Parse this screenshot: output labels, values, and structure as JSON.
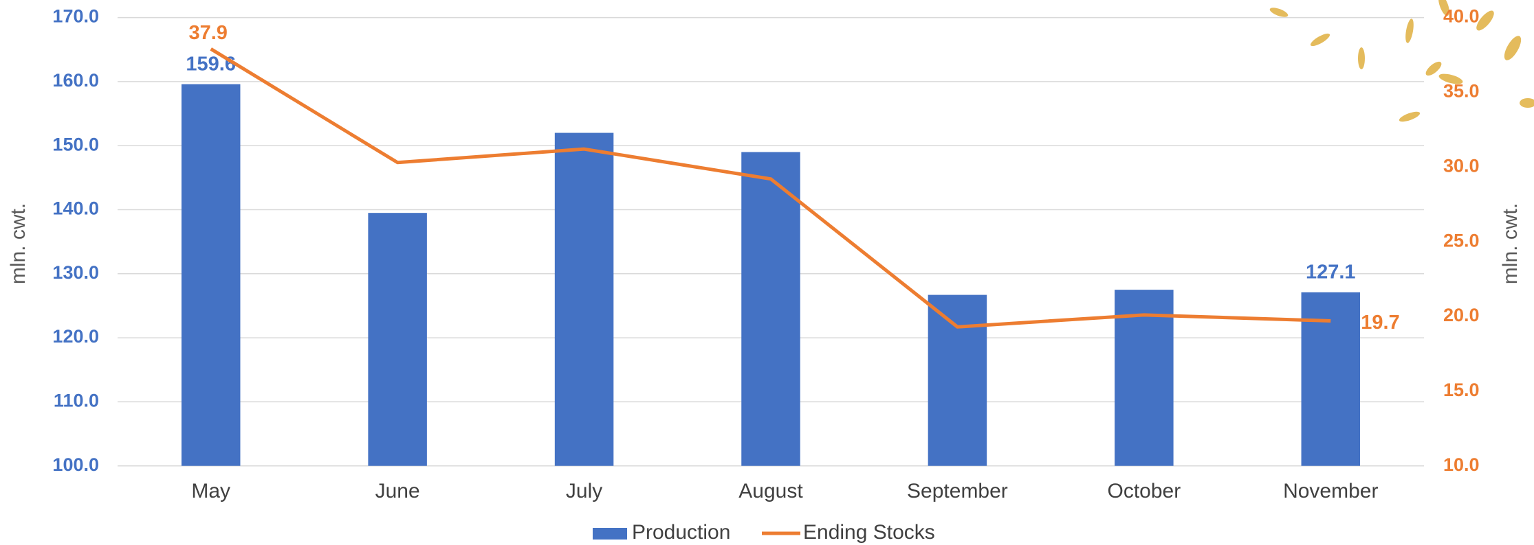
{
  "chart_data": {
    "type": "bar-line",
    "categories": [
      "May",
      "June",
      "July",
      "August",
      "September",
      "October",
      "November"
    ],
    "y_axis_label": "mln. cwt.",
    "y2_axis_label": "mln. cwt.",
    "ylim": [
      100,
      170
    ],
    "yticks": [
      {
        "value": 100,
        "label": "100.0"
      },
      {
        "value": 110,
        "label": "110.0"
      },
      {
        "value": 120,
        "label": "120.0"
      },
      {
        "value": 130,
        "label": "130.0"
      },
      {
        "value": 140,
        "label": "140.0"
      },
      {
        "value": 150,
        "label": "150.0"
      },
      {
        "value": 160,
        "label": "160.0"
      },
      {
        "value": 170,
        "label": "170.0"
      }
    ],
    "y2lim": [
      10,
      40
    ],
    "y2ticks": [
      {
        "value": 10,
        "label": "10.0"
      },
      {
        "value": 15,
        "label": "15.0"
      },
      {
        "value": 20,
        "label": "20.0"
      },
      {
        "value": 25,
        "label": "25.0"
      },
      {
        "value": 30,
        "label": "30.0"
      },
      {
        "value": 35,
        "label": "35.0"
      },
      {
        "value": 40,
        "label": "40.0"
      }
    ],
    "grid": true,
    "legend": "bottom",
    "series": [
      {
        "name": "Production",
        "type": "bar",
        "color": "#4472c4",
        "values": [
          159.6,
          139.5,
          152.0,
          149.0,
          126.7,
          127.5,
          127.1
        ],
        "labeled": [
          0,
          6
        ]
      },
      {
        "name": "Ending Stocks",
        "type": "line",
        "axis": "y2",
        "color": "#ed7d31",
        "values": [
          37.9,
          30.3,
          31.2,
          29.2,
          19.3,
          20.1,
          19.7
        ],
        "labeled": [
          0,
          6
        ]
      }
    ]
  }
}
